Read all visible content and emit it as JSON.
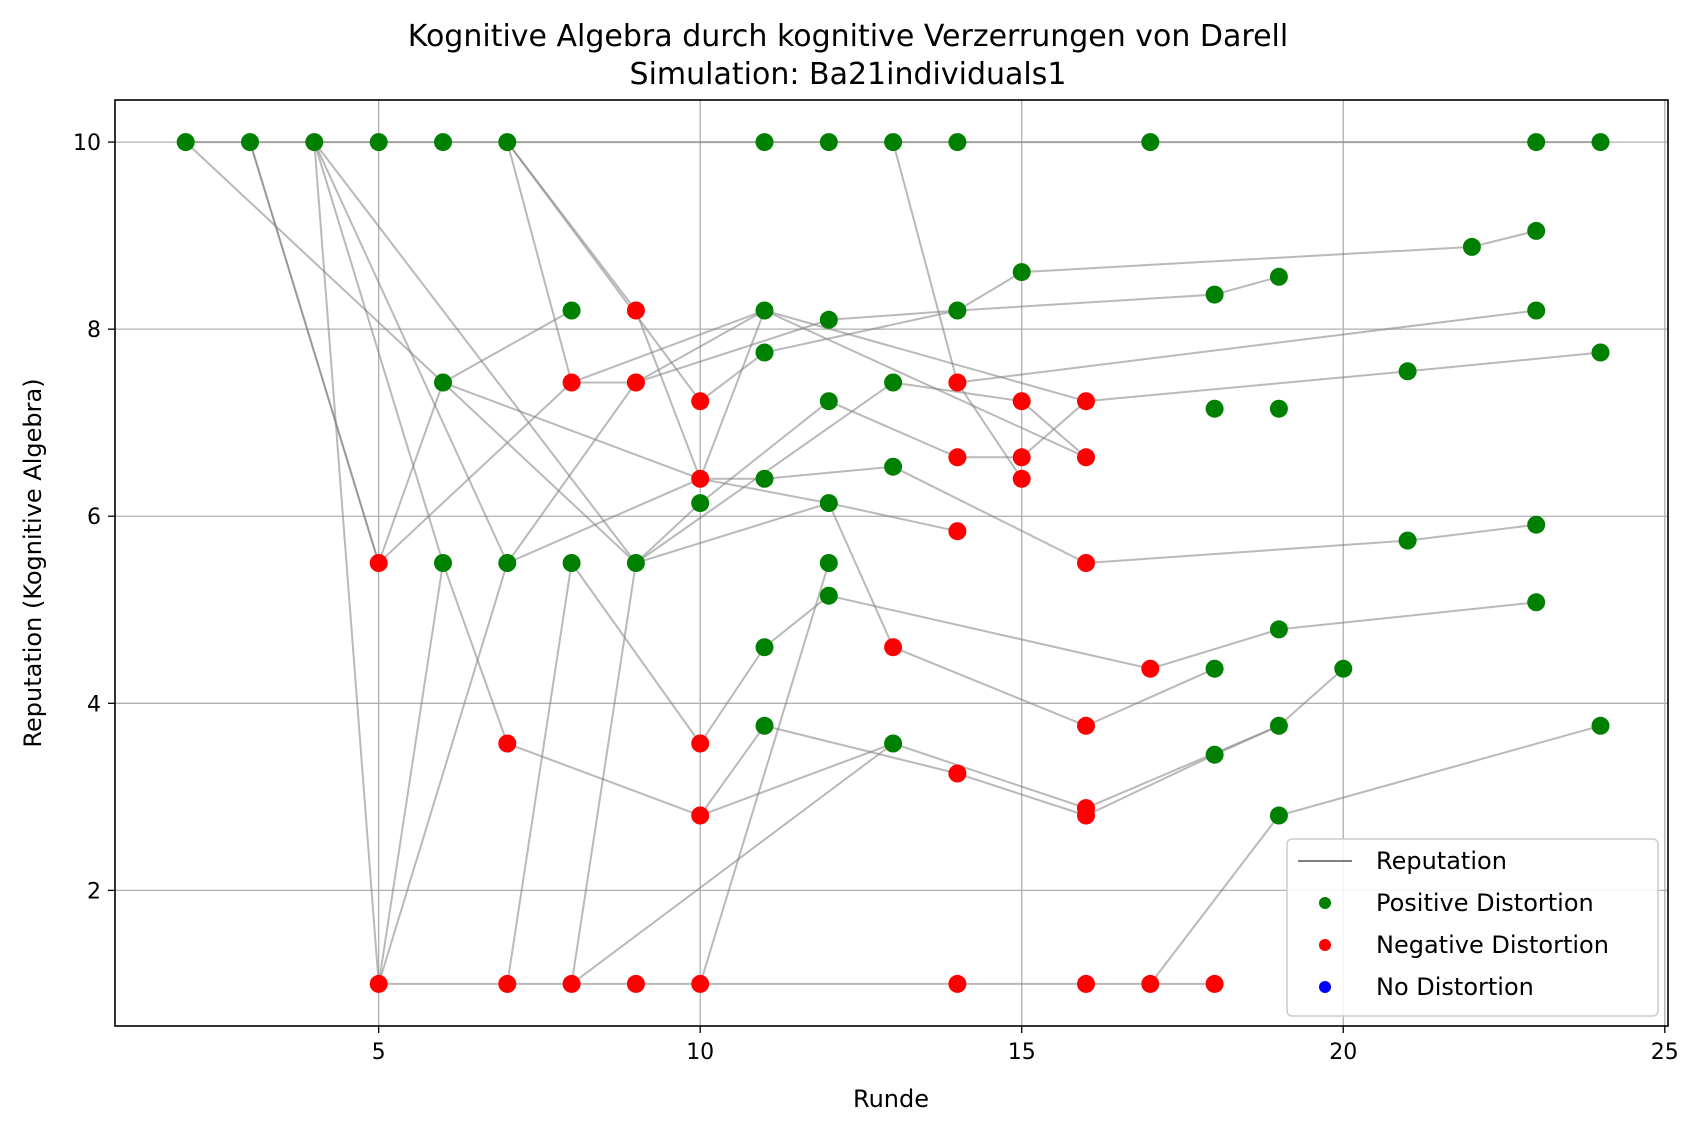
{
  "chart_data": {
    "type": "scatter",
    "title": "Kognitive Algebra durch kognitive Verzerrungen von Darell",
    "subtitle": "Simulation: Ba21individuals1",
    "xlabel": "Runde",
    "ylabel": "Reputation (Kognitive Algebra)",
    "xlim": [
      0.9,
      25.05
    ],
    "ylim": [
      0.55,
      10.45
    ],
    "xticks": [
      5,
      10,
      15,
      20,
      25
    ],
    "yticks": [
      2,
      4,
      6,
      8,
      10
    ],
    "grid": true,
    "legend_position": "lower right",
    "legend": [
      {
        "label": "Reputation",
        "kind": "line",
        "color": "#808080"
      },
      {
        "label": "Positive Distortion",
        "kind": "marker",
        "color": "#008000"
      },
      {
        "label": "Negative Distortion",
        "kind": "marker",
        "color": "#ff0000"
      },
      {
        "label": "No Distortion",
        "kind": "marker",
        "color": "#0000ff"
      }
    ],
    "colors": {
      "positive": "#008000",
      "negative": "#ff0000",
      "none": "#0000ff",
      "line": "#808080",
      "grid": "#b0b0b0"
    },
    "points": [
      {
        "x": 2,
        "y": 10,
        "c": "positive"
      },
      {
        "x": 3,
        "y": 10,
        "c": "positive"
      },
      {
        "x": 4,
        "y": 10,
        "c": "positive"
      },
      {
        "x": 5,
        "y": 10,
        "c": "positive"
      },
      {
        "x": 6,
        "y": 10,
        "c": "positive"
      },
      {
        "x": 7,
        "y": 10,
        "c": "positive"
      },
      {
        "x": 11,
        "y": 10,
        "c": "positive"
      },
      {
        "x": 12,
        "y": 10,
        "c": "positive"
      },
      {
        "x": 13,
        "y": 10,
        "c": "positive"
      },
      {
        "x": 14,
        "y": 10,
        "c": "positive"
      },
      {
        "x": 17,
        "y": 10,
        "c": "positive"
      },
      {
        "x": 23,
        "y": 10,
        "c": "positive"
      },
      {
        "x": 24,
        "y": 10,
        "c": "positive"
      },
      {
        "x": 5,
        "y": 5.5,
        "c": "negative"
      },
      {
        "x": 6,
        "y": 7.43,
        "c": "positive"
      },
      {
        "x": 6,
        "y": 5.5,
        "c": "positive"
      },
      {
        "x": 7,
        "y": 5.5,
        "c": "positive"
      },
      {
        "x": 7,
        "y": 3.57,
        "c": "negative"
      },
      {
        "x": 8,
        "y": 8.2,
        "c": "positive"
      },
      {
        "x": 8,
        "y": 7.43,
        "c": "negative"
      },
      {
        "x": 8,
        "y": 5.5,
        "c": "positive"
      },
      {
        "x": 9,
        "y": 8.2,
        "c": "negative"
      },
      {
        "x": 9,
        "y": 7.43,
        "c": "negative"
      },
      {
        "x": 9,
        "y": 5.5,
        "c": "positive"
      },
      {
        "x": 10,
        "y": 7.23,
        "c": "negative"
      },
      {
        "x": 10,
        "y": 6.4,
        "c": "negative"
      },
      {
        "x": 10,
        "y": 6.14,
        "c": "positive"
      },
      {
        "x": 10,
        "y": 3.57,
        "c": "negative"
      },
      {
        "x": 10,
        "y": 2.8,
        "c": "negative"
      },
      {
        "x": 11,
        "y": 8.2,
        "c": "positive"
      },
      {
        "x": 11,
        "y": 7.75,
        "c": "positive"
      },
      {
        "x": 11,
        "y": 6.4,
        "c": "positive"
      },
      {
        "x": 11,
        "y": 4.6,
        "c": "positive"
      },
      {
        "x": 11,
        "y": 3.76,
        "c": "positive"
      },
      {
        "x": 12,
        "y": 8.1,
        "c": "positive"
      },
      {
        "x": 12,
        "y": 7.23,
        "c": "positive"
      },
      {
        "x": 12,
        "y": 6.14,
        "c": "positive"
      },
      {
        "x": 12,
        "y": 5.5,
        "c": "positive"
      },
      {
        "x": 12,
        "y": 5.15,
        "c": "positive"
      },
      {
        "x": 13,
        "y": 7.43,
        "c": "positive"
      },
      {
        "x": 13,
        "y": 6.53,
        "c": "positive"
      },
      {
        "x": 13,
        "y": 4.6,
        "c": "negative"
      },
      {
        "x": 13,
        "y": 3.57,
        "c": "positive"
      },
      {
        "x": 14,
        "y": 8.2,
        "c": "positive"
      },
      {
        "x": 14,
        "y": 7.43,
        "c": "negative"
      },
      {
        "x": 14,
        "y": 6.63,
        "c": "negative"
      },
      {
        "x": 14,
        "y": 5.84,
        "c": "negative"
      },
      {
        "x": 14,
        "y": 3.25,
        "c": "negative"
      },
      {
        "x": 15,
        "y": 8.61,
        "c": "positive"
      },
      {
        "x": 15,
        "y": 7.23,
        "c": "negative"
      },
      {
        "x": 15,
        "y": 6.63,
        "c": "negative"
      },
      {
        "x": 15,
        "y": 6.4,
        "c": "negative"
      },
      {
        "x": 16,
        "y": 7.23,
        "c": "negative"
      },
      {
        "x": 16,
        "y": 6.63,
        "c": "negative"
      },
      {
        "x": 16,
        "y": 5.5,
        "c": "negative"
      },
      {
        "x": 16,
        "y": 3.76,
        "c": "negative"
      },
      {
        "x": 16,
        "y": 2.88,
        "c": "negative"
      },
      {
        "x": 16,
        "y": 2.8,
        "c": "negative"
      },
      {
        "x": 17,
        "y": 4.37,
        "c": "negative"
      },
      {
        "x": 18,
        "y": 8.37,
        "c": "positive"
      },
      {
        "x": 18,
        "y": 7.15,
        "c": "positive"
      },
      {
        "x": 18,
        "y": 4.37,
        "c": "positive"
      },
      {
        "x": 18,
        "y": 3.45,
        "c": "positive"
      },
      {
        "x": 19,
        "y": 8.56,
        "c": "positive"
      },
      {
        "x": 19,
        "y": 7.15,
        "c": "positive"
      },
      {
        "x": 19,
        "y": 4.79,
        "c": "positive"
      },
      {
        "x": 19,
        "y": 3.76,
        "c": "positive"
      },
      {
        "x": 19,
        "y": 2.8,
        "c": "positive"
      },
      {
        "x": 20,
        "y": 4.37,
        "c": "positive"
      },
      {
        "x": 21,
        "y": 7.55,
        "c": "positive"
      },
      {
        "x": 21,
        "y": 5.74,
        "c": "positive"
      },
      {
        "x": 22,
        "y": 8.88,
        "c": "positive"
      },
      {
        "x": 23,
        "y": 9.05,
        "c": "positive"
      },
      {
        "x": 23,
        "y": 8.2,
        "c": "positive"
      },
      {
        "x": 23,
        "y": 5.91,
        "c": "positive"
      },
      {
        "x": 23,
        "y": 5.08,
        "c": "positive"
      },
      {
        "x": 24,
        "y": 7.75,
        "c": "positive"
      },
      {
        "x": 24,
        "y": 3.76,
        "c": "positive"
      },
      {
        "x": 5,
        "y": 1,
        "c": "negative"
      },
      {
        "x": 7,
        "y": 1,
        "c": "negative"
      },
      {
        "x": 8,
        "y": 1,
        "c": "negative"
      },
      {
        "x": 9,
        "y": 1,
        "c": "negative"
      },
      {
        "x": 10,
        "y": 1,
        "c": "negative"
      },
      {
        "x": 14,
        "y": 1,
        "c": "negative"
      },
      {
        "x": 16,
        "y": 1,
        "c": "negative"
      },
      {
        "x": 17,
        "y": 1,
        "c": "negative"
      },
      {
        "x": 18,
        "y": 1,
        "c": "negative"
      }
    ],
    "lines": [
      [
        [
          2,
          10
        ],
        [
          3,
          10
        ],
        [
          4,
          10
        ],
        [
          5,
          10
        ],
        [
          6,
          10
        ],
        [
          7,
          10
        ],
        [
          11,
          10
        ],
        [
          12,
          10
        ],
        [
          13,
          10
        ],
        [
          14,
          10
        ],
        [
          17,
          10
        ],
        [
          23,
          10
        ],
        [
          24,
          10
        ]
      ],
      [
        [
          5,
          1
        ],
        [
          7,
          1
        ],
        [
          8,
          1
        ],
        [
          9,
          1
        ],
        [
          10,
          1
        ],
        [
          14,
          1
        ],
        [
          16,
          1
        ],
        [
          17,
          1
        ],
        [
          18,
          1
        ]
      ],
      [
        [
          3,
          10
        ],
        [
          5,
          5.5
        ],
        [
          6,
          7.43
        ],
        [
          8,
          8.2
        ]
      ],
      [
        [
          3,
          10
        ],
        [
          5,
          5.5
        ]
      ],
      [
        [
          5,
          5.5
        ],
        [
          8,
          7.43
        ],
        [
          11,
          8.2
        ],
        [
          16,
          6.63
        ]
      ],
      [
        [
          2,
          10
        ],
        [
          6,
          7.43
        ],
        [
          10,
          6.4
        ],
        [
          11,
          8.2
        ]
      ],
      [
        [
          4,
          10
        ],
        [
          5,
          1
        ],
        [
          6,
          5.5
        ],
        [
          7,
          3.57
        ],
        [
          10,
          2.8
        ],
        [
          13,
          3.57
        ]
      ],
      [
        [
          4,
          10
        ],
        [
          6,
          5.5
        ]
      ],
      [
        [
          4,
          10
        ],
        [
          7,
          5.5
        ],
        [
          9,
          7.43
        ],
        [
          12,
          8.1
        ],
        [
          14,
          8.2
        ],
        [
          15,
          8.61
        ],
        [
          22,
          8.88
        ],
        [
          23,
          9.05
        ]
      ],
      [
        [
          4,
          10
        ],
        [
          9,
          5.5
        ],
        [
          12,
          6.14
        ],
        [
          14,
          5.84
        ]
      ],
      [
        [
          6,
          7.43
        ],
        [
          9,
          5.5
        ],
        [
          10,
          6.14
        ],
        [
          12,
          7.23
        ],
        [
          14,
          6.63
        ],
        [
          15,
          6.63
        ],
        [
          16,
          7.23
        ],
        [
          21,
          7.55
        ],
        [
          24,
          7.75
        ]
      ],
      [
        [
          7,
          10
        ],
        [
          9,
          8.2
        ],
        [
          10,
          6.4
        ],
        [
          12,
          6.14
        ],
        [
          13,
          4.6
        ],
        [
          16,
          3.76
        ],
        [
          18,
          4.37
        ]
      ],
      [
        [
          7,
          10
        ],
        [
          10,
          7.23
        ],
        [
          11,
          7.75
        ],
        [
          14,
          8.2
        ],
        [
          18,
          8.37
        ],
        [
          19,
          8.56
        ]
      ],
      [
        [
          7,
          10
        ],
        [
          8,
          7.43
        ],
        [
          9,
          7.43
        ],
        [
          11,
          8.2
        ],
        [
          16,
          7.23
        ]
      ],
      [
        [
          13,
          10
        ],
        [
          14,
          7.43
        ],
        [
          15,
          6.4
        ],
        [
          14,
          7.43
        ],
        [
          23,
          8.2
        ]
      ],
      [
        [
          5,
          1
        ],
        [
          7,
          5.5
        ],
        [
          10,
          6.4
        ],
        [
          11,
          6.4
        ],
        [
          13,
          6.53
        ],
        [
          16,
          5.5
        ],
        [
          21,
          5.74
        ],
        [
          23,
          5.91
        ]
      ],
      [
        [
          7,
          1
        ],
        [
          8,
          5.5
        ],
        [
          10,
          3.57
        ],
        [
          11,
          4.6
        ],
        [
          12,
          5.15
        ],
        [
          17,
          4.37
        ],
        [
          19,
          4.79
        ],
        [
          23,
          5.08
        ]
      ],
      [
        [
          8,
          1
        ],
        [
          9,
          5.5
        ],
        [
          13,
          7.43
        ],
        [
          15,
          7.23
        ],
        [
          16,
          6.63
        ]
      ],
      [
        [
          8,
          1
        ],
        [
          13,
          3.57
        ],
        [
          16,
          2.88
        ],
        [
          19,
          3.76
        ],
        [
          20,
          4.37
        ]
      ],
      [
        [
          10,
          1
        ],
        [
          12,
          5.5
        ]
      ],
      [
        [
          10,
          2.8
        ],
        [
          11,
          3.76
        ],
        [
          14,
          3.25
        ],
        [
          16,
          2.8
        ],
        [
          18,
          3.45
        ],
        [
          19,
          3.76
        ]
      ],
      [
        [
          17,
          1
        ],
        [
          19,
          2.8
        ],
        [
          24,
          3.76
        ]
      ]
    ]
  }
}
